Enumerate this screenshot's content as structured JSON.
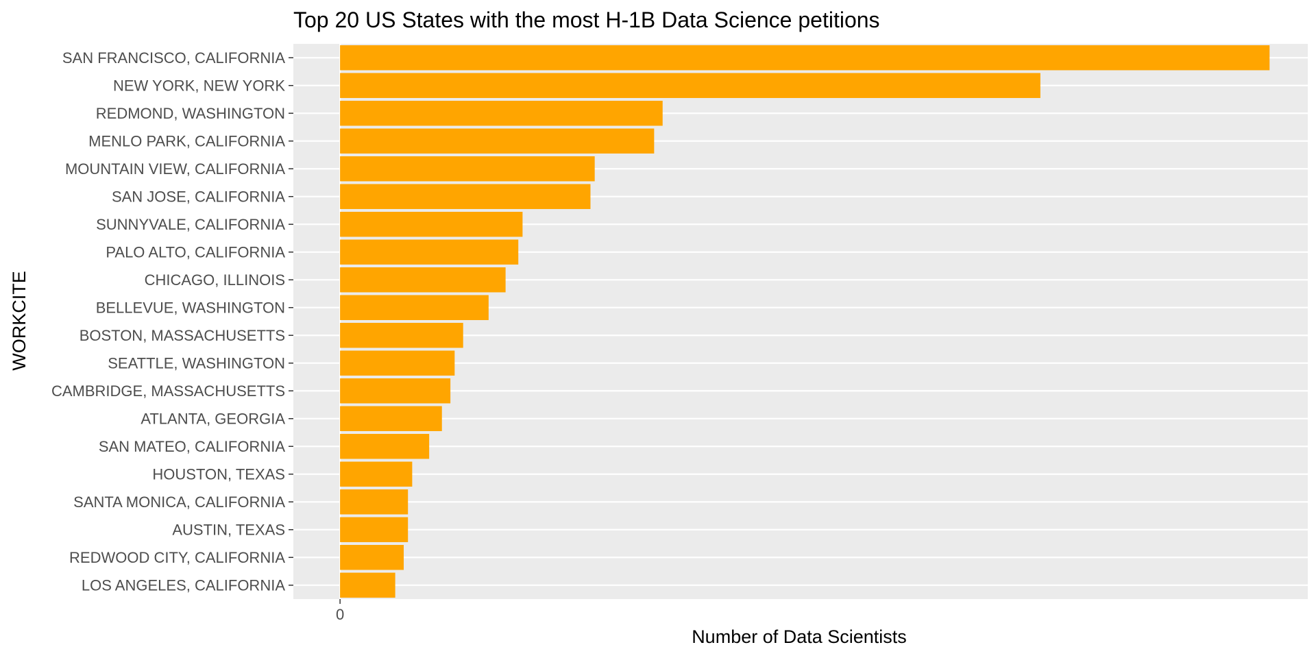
{
  "chart_data": {
    "type": "bar",
    "orientation": "horizontal",
    "title": "Top 20 US States with the most H-1B Data Science petitions",
    "xlabel": "Number of Data Scientists",
    "ylabel": "WORKCITE",
    "x_ticks": [
      "0"
    ],
    "xlim": [
      -11,
      228
    ],
    "categories": [
      "SAN FRANCISCO, CALIFORNIA",
      "NEW YORK, NEW YORK",
      "REDMOND, WASHINGTON",
      "MENLO PARK, CALIFORNIA",
      "MOUNTAIN VIEW, CALIFORNIA",
      "SAN JOSE, CALIFORNIA",
      "SUNNYVALE, CALIFORNIA",
      "PALO ALTO, CALIFORNIA",
      "CHICAGO, ILLINOIS",
      "BELLEVUE, WASHINGTON",
      "BOSTON, MASSACHUSETTS",
      "SEATTLE, WASHINGTON",
      "CAMBRIDGE, MASSACHUSETTS",
      "ATLANTA, GEORGIA",
      "SAN MATEO, CALIFORNIA",
      "HOUSTON, TEXAS",
      "SANTA MONICA, CALIFORNIA",
      "AUSTIN, TEXAS",
      "REDWOOD CITY, CALIFORNIA",
      "LOS ANGELES, CALIFORNIA"
    ],
    "values": [
      219,
      165,
      76,
      74,
      60,
      59,
      43,
      42,
      39,
      35,
      29,
      27,
      26,
      24,
      21,
      17,
      16,
      16,
      15,
      13
    ],
    "bar_color": "#FFA500",
    "panel_background": "#EBEBEB",
    "grid": true,
    "legend": "none"
  }
}
